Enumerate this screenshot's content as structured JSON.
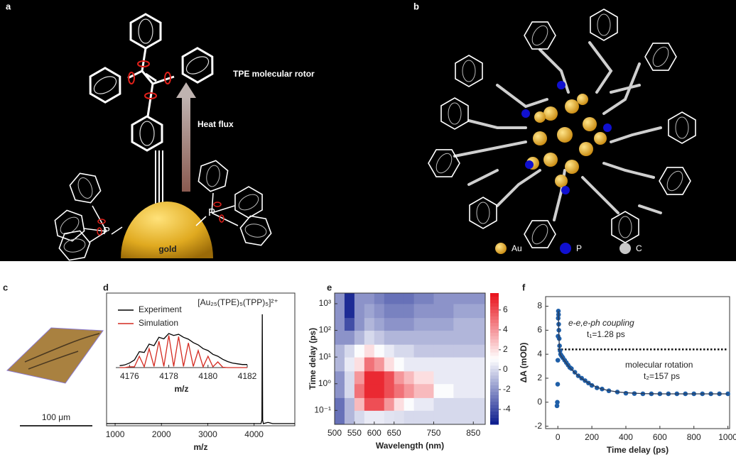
{
  "panels": {
    "a": {
      "label": "a",
      "rotor": "TPE molecular rotor",
      "heat": "Heat flux",
      "p_left": "P",
      "p_right": "P",
      "gold": "gold"
    },
    "b": {
      "label": "b",
      "legend": [
        "Au",
        "P",
        "C"
      ]
    },
    "c": {
      "label": "c",
      "scale": "100 μm"
    }
  },
  "chart_data": [
    {
      "type": "line",
      "label": "d",
      "annotation": "[Au₂₅(TPE)₅(TPP)₅]²⁺",
      "xlabel": "m/z",
      "x": [
        815,
        1000,
        2000,
        3000,
        4000,
        4150,
        4170,
        4178,
        4185,
        4200,
        4300,
        4400,
        4500,
        4880
      ],
      "xlim": [
        815,
        4880
      ],
      "xticks": [
        1000,
        2000,
        3000,
        4000
      ],
      "ylim": [
        0,
        1.19
      ],
      "series": [
        {
          "color": "#000000",
          "values": [
            0.02,
            0.02,
            0.02,
            0.02,
            0.02,
            0.02,
            0.05,
            1,
            0.05,
            0.02,
            0.03,
            0.02,
            0.02,
            0.02
          ]
        }
      ]
    },
    {
      "type": "line",
      "xlabel": "m/z",
      "legend": "upper left",
      "x": [
        4175.5,
        4175.75,
        4176,
        4176.25,
        4176.5,
        4176.75,
        4177,
        4177.25,
        4177.5,
        4177.75,
        4178,
        4178.25,
        4178.5,
        4178.75,
        4179,
        4179.25,
        4179.5,
        4179.75,
        4180,
        4180.25,
        4180.5,
        4180.75,
        4181,
        4181.25,
        4181.5,
        4181.75,
        4182
      ],
      "xlim": [
        4175.3,
        4182
      ],
      "xticks": [
        4176,
        4178,
        4180,
        4182
      ],
      "ylim": [
        0,
        1.05
      ],
      "series": [
        {
          "name": "Experiment",
          "color": "#000000",
          "values": [
            0.05,
            0.07,
            0.12,
            0.2,
            0.42,
            0.4,
            0.62,
            0.58,
            0.8,
            0.76,
            0.9,
            0.85,
            0.88,
            0.8,
            0.75,
            0.66,
            0.6,
            0.5,
            0.45,
            0.35,
            0.3,
            0.22,
            0.16,
            0.12,
            0.1,
            0.08,
            0.08
          ]
        },
        {
          "name": "Simulation",
          "color": "#d42a20",
          "values": [
            0,
            0,
            0.02,
            0.02,
            0.3,
            0.02,
            0.5,
            0.03,
            0.7,
            0.03,
            0.85,
            0.03,
            0.82,
            0.03,
            0.65,
            0.03,
            0.45,
            0.02,
            0.3,
            0.02,
            0.15,
            0.01,
            0,
            0,
            0,
            0,
            0
          ]
        }
      ]
    },
    {
      "type": "heatmap",
      "label": "e",
      "xlabel": "Wavelength (nm)",
      "ylabel": "Time delay (ps)",
      "xlim": [
        500,
        880
      ],
      "xticks": [
        500,
        550,
        600,
        650,
        750,
        850
      ],
      "ylim": [
        0.03,
        2500
      ],
      "yscale": "log",
      "yticks": [
        {
          "value": 0.1,
          "label": "10⁻¹"
        },
        {
          "value": 1,
          "label": "10⁰"
        },
        {
          "value": 10,
          "label": "10¹"
        },
        {
          "value": 100,
          "label": "10²"
        },
        {
          "value": 1000,
          "label": "10³"
        }
      ],
      "xbins": [
        500,
        525,
        550,
        575,
        600,
        625,
        650,
        675,
        700,
        750,
        800,
        880
      ],
      "ybins": [
        0.03,
        0.1,
        0.3,
        1,
        3,
        10,
        30,
        100,
        300,
        1000,
        2500
      ],
      "z": [
        [
          -3,
          -1,
          0,
          0.5,
          0.5,
          0.3,
          0.2,
          0,
          0,
          0,
          0
        ],
        [
          -3,
          -1,
          3,
          6,
          6,
          4,
          2,
          1,
          0.5,
          0,
          0
        ],
        [
          -2,
          0,
          5,
          7,
          7,
          6,
          5,
          4,
          3,
          1,
          0.5
        ],
        [
          -2,
          0,
          4,
          7,
          7,
          6,
          4,
          3,
          2,
          0.5,
          0.5
        ],
        [
          -1,
          0.5,
          2,
          5,
          4,
          2,
          1,
          0.5,
          0.5,
          0.5,
          0.5
        ],
        [
          -1,
          0,
          1,
          2,
          1,
          0.5,
          0,
          0,
          -0.5,
          -0.5,
          -0.5
        ],
        [
          -2,
          -2,
          -1,
          0,
          -0.5,
          -1,
          -1,
          -1,
          -1,
          -1,
          -1
        ],
        [
          -2,
          -4,
          -2,
          -1,
          -1.5,
          -2,
          -2,
          -2,
          -1.5,
          -1.5,
          -1
        ],
        [
          -2,
          -5,
          -2,
          -1.5,
          -2,
          -2.5,
          -2.5,
          -2.5,
          -2,
          -2,
          -1.5
        ],
        [
          -2,
          -5,
          -2,
          -2,
          -2.5,
          -3,
          -3,
          -3,
          -2.5,
          -2,
          -2
        ]
      ],
      "colorbar": {
        "clim": [
          -5.5,
          7.7
        ],
        "ticks": [
          -4,
          -2,
          0,
          2,
          4,
          6
        ],
        "colors": [
          "#0a1a8c",
          "#ffffff",
          "#e8101a"
        ]
      }
    },
    {
      "type": "scatter",
      "label": "f",
      "xlabel": "Time delay (ps)",
      "ylabel": "ΔA (mOD)",
      "xlim": [
        -72,
        1010
      ],
      "xticks": [
        0,
        200,
        400,
        600,
        800,
        1000
      ],
      "ylim": [
        -2.2,
        8.8
      ],
      "yticks": [
        -2,
        0,
        2,
        4,
        6,
        8
      ],
      "reference_line": 4.4,
      "annotations": [
        "e-e,e-ph coupling",
        "t₁=1.28 ps",
        "molecular rotation",
        "t₂=157 ps"
      ],
      "x": [
        -5,
        -3,
        -1,
        0,
        1,
        2,
        3,
        4,
        5,
        6,
        8,
        10,
        13,
        16,
        20,
        25,
        30,
        40,
        50,
        60,
        70,
        80,
        100,
        120,
        140,
        160,
        180,
        200,
        230,
        260,
        300,
        350,
        400,
        450,
        500,
        550,
        600,
        650,
        700,
        750,
        800,
        850,
        900,
        950,
        1000
      ],
      "series": [
        {
          "style": "markers",
          "color": "#1f5fa8",
          "values": [
            -0.3,
            0,
            1.5,
            3.5,
            5.5,
            7,
            7.6,
            7.3,
            6.5,
            6,
            5.3,
            4.7,
            4.3,
            4,
            3.9,
            3.8,
            3.7,
            3.5,
            3.3,
            3.1,
            2.9,
            2.8,
            2.5,
            2.2,
            2,
            1.8,
            1.6,
            1.4,
            1.2,
            1.1,
            0.95,
            0.85,
            0.75,
            0.72,
            0.7,
            0.7,
            0.7,
            0.7,
            0.7,
            0.7,
            0.7,
            0.7,
            0.7,
            0.7,
            0.7
          ]
        },
        {
          "style": "line",
          "color": "#2b3a55",
          "values": [
            null,
            null,
            null,
            null,
            null,
            null,
            7.6,
            7.0,
            6.3,
            5.7,
            5.0,
            4.5,
            4.1,
            3.95,
            3.85,
            3.75,
            3.65,
            3.45,
            3.25,
            3.05,
            2.9,
            2.75,
            2.45,
            2.2,
            1.98,
            1.78,
            1.6,
            1.45,
            1.25,
            1.1,
            0.97,
            0.86,
            0.79,
            0.75,
            0.72,
            0.71,
            0.7,
            0.7,
            0.7,
            0.7,
            0.7,
            0.7,
            0.7,
            0.7,
            0.7
          ]
        }
      ]
    }
  ]
}
